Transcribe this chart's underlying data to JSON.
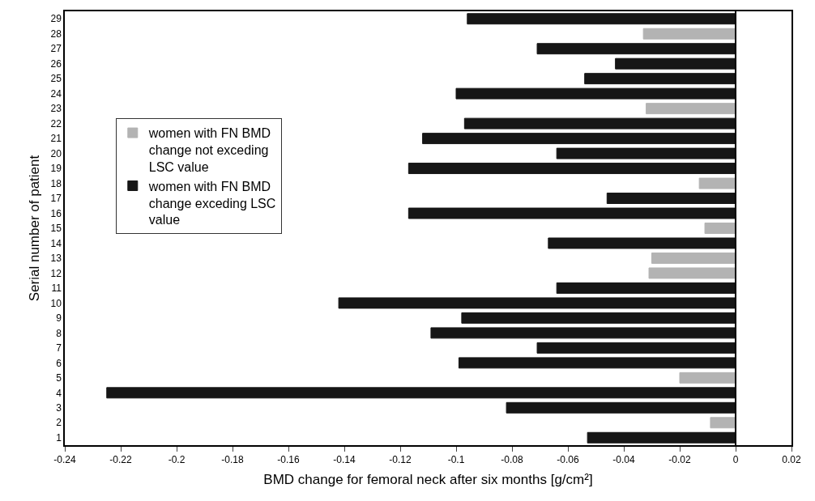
{
  "chart_data": {
    "type": "bar",
    "orientation": "horizontal",
    "xlabel": "BMD change for femoral neck after six months [g/cm²]",
    "ylabel": "Serial number of patient",
    "categories": [
      "29",
      "28",
      "27",
      "26",
      "25",
      "24",
      "23",
      "22",
      "21",
      "20",
      "19",
      "18",
      "17",
      "16",
      "15",
      "14",
      "13",
      "12",
      "11",
      "10",
      "9",
      "8",
      "7",
      "6",
      "5",
      "4",
      "3",
      "2",
      "1"
    ],
    "series": [
      {
        "name": "women with FN BMD change not exceding LSC value",
        "color": "#b3b3b3",
        "values": [
          null,
          -0.033,
          null,
          null,
          null,
          null,
          -0.032,
          null,
          null,
          null,
          null,
          -0.013,
          null,
          null,
          -0.011,
          null,
          -0.03,
          -0.031,
          null,
          null,
          null,
          null,
          null,
          null,
          -0.02,
          null,
          null,
          -0.009,
          null
        ]
      },
      {
        "name": "women with FN BMD change exceding LSC value",
        "color": "#161616",
        "values": [
          -0.096,
          null,
          -0.071,
          -0.043,
          -0.054,
          -0.1,
          null,
          -0.097,
          -0.112,
          -0.064,
          -0.117,
          null,
          -0.046,
          -0.117,
          null,
          -0.067,
          null,
          null,
          -0.064,
          -0.142,
          -0.098,
          -0.109,
          -0.071,
          -0.099,
          null,
          -0.225,
          -0.082,
          null,
          -0.053
        ]
      }
    ],
    "xlim": [
      -0.24,
      0.02
    ],
    "xticks": [
      -0.24,
      -0.22,
      -0.2,
      -0.18,
      -0.16,
      -0.14,
      -0.12,
      -0.1,
      -0.08,
      -0.06,
      -0.04,
      -0.02,
      0,
      0.02
    ],
    "ref_lines": [
      {
        "axis": "x",
        "value": 0,
        "color": "#000000"
      }
    ],
    "grid": false,
    "legend": "left"
  }
}
